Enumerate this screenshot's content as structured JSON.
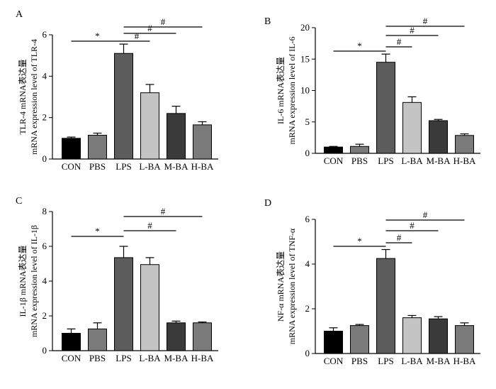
{
  "chart_data": [
    {
      "type": "bar",
      "panel_label": "A",
      "categories": [
        "CON",
        "PBS",
        "LPS",
        "L-BA",
        "M-BA",
        "H-BA"
      ],
      "values": [
        1.0,
        1.15,
        5.1,
        3.2,
        2.2,
        1.65
      ],
      "errors": [
        0.06,
        0.1,
        0.45,
        0.4,
        0.35,
        0.15
      ],
      "ylim": [
        0,
        6
      ],
      "yticks": [
        "0",
        "2",
        "4",
        "6"
      ],
      "ylabel_gene": "TLR-4 mRNA表达量",
      "ylabel": "mRNA expression level of TLR-4",
      "significance": [
        {
          "from": 0,
          "to": 2,
          "symbol": "*"
        },
        {
          "from": 2,
          "to": 3,
          "symbol": "#"
        },
        {
          "from": 2,
          "to": 4,
          "symbol": "#"
        },
        {
          "from": 2,
          "to": 5,
          "symbol": "#"
        }
      ]
    },
    {
      "type": "bar",
      "panel_label": "B",
      "categories": [
        "CON",
        "PBS",
        "LPS",
        "L-BA",
        "M-BA",
        "H-BA"
      ],
      "values": [
        1.0,
        1.1,
        14.5,
        8.1,
        5.2,
        2.85
      ],
      "errors": [
        0.1,
        0.35,
        1.3,
        0.9,
        0.2,
        0.25
      ],
      "ylim": [
        0,
        20
      ],
      "yticks": [
        "0",
        "5",
        "10",
        "15",
        "20"
      ],
      "ylabel_gene": "IL-6 mRNA表达量",
      "ylabel": "mRNA expression level of IL-6",
      "significance": [
        {
          "from": 0,
          "to": 2,
          "symbol": "*"
        },
        {
          "from": 2,
          "to": 3,
          "symbol": "#"
        },
        {
          "from": 2,
          "to": 4,
          "symbol": "#"
        },
        {
          "from": 2,
          "to": 5,
          "symbol": "#"
        }
      ]
    },
    {
      "type": "bar",
      "panel_label": "C",
      "categories": [
        "CON",
        "PBS",
        "LPS",
        "L-BA",
        "M-BA",
        "H-BA"
      ],
      "values": [
        1.0,
        1.25,
        5.35,
        4.95,
        1.6,
        1.6
      ],
      "errors": [
        0.25,
        0.35,
        0.65,
        0.4,
        0.1,
        0.05
      ],
      "ylim": [
        0,
        8
      ],
      "yticks": [
        "0",
        "2",
        "4",
        "6",
        "8"
      ],
      "ylabel_gene": "IL-1β mRNA表达量",
      "ylabel": "mRNA expression level of IL-1β",
      "significance": [
        {
          "from": 0,
          "to": 2,
          "symbol": "*"
        },
        {
          "from": 2,
          "to": 4,
          "symbol": "#"
        },
        {
          "from": 2,
          "to": 5,
          "symbol": "#"
        }
      ]
    },
    {
      "type": "bar",
      "panel_label": "D",
      "categories": [
        "CON",
        "PBS",
        "LPS",
        "L-BA",
        "M-BA",
        "H-BA"
      ],
      "values": [
        1.0,
        1.25,
        4.25,
        1.6,
        1.55,
        1.25
      ],
      "errors": [
        0.15,
        0.05,
        0.4,
        0.1,
        0.1,
        0.12
      ],
      "ylim": [
        0,
        6
      ],
      "yticks": [
        "0",
        "2",
        "4",
        "6"
      ],
      "ylabel_gene": "NF-α mRNA表达量",
      "ylabel": "mRNA expression level of TNF-α",
      "significance": [
        {
          "from": 0,
          "to": 2,
          "symbol": "*"
        },
        {
          "from": 2,
          "to": 3,
          "symbol": "#"
        },
        {
          "from": 2,
          "to": 4,
          "symbol": "#"
        },
        {
          "from": 2,
          "to": 5,
          "symbol": "#"
        }
      ]
    }
  ],
  "colors": {
    "bars": [
      "#000000",
      "#7a7a7a",
      "#5c5c5c",
      "#c4c4c4",
      "#3a3a3a",
      "#7a7a7a"
    ],
    "axis": "#000000"
  }
}
